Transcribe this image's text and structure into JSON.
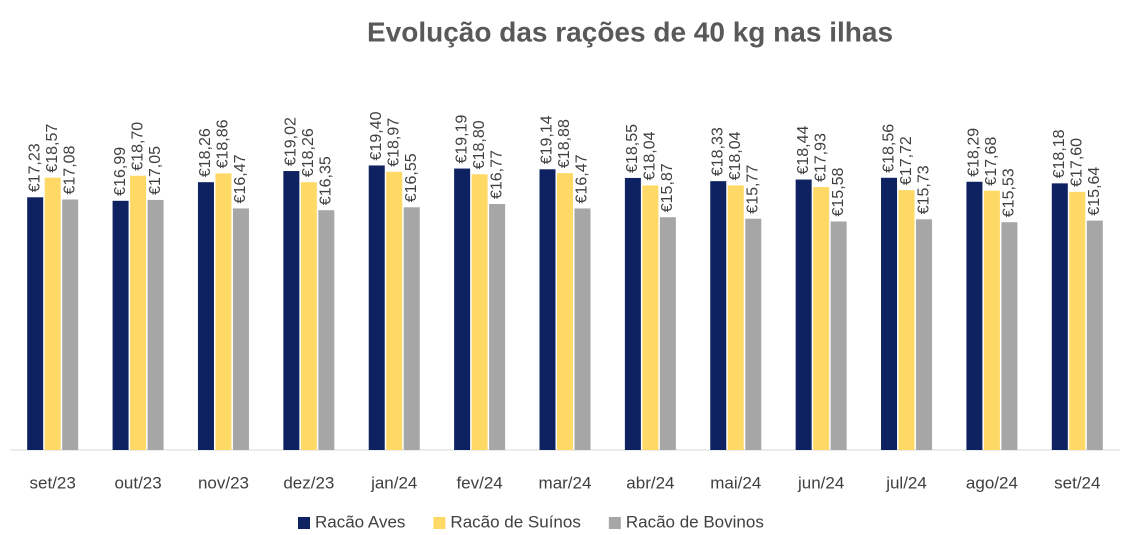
{
  "chart_data": {
    "type": "bar",
    "title": "Evolução das rações de 40 kg nas ilhas",
    "categories": [
      "set/23",
      "out/23",
      "nov/23",
      "dez/23",
      "jan/24",
      "fev/24",
      "mar/24",
      "abr/24",
      "mai/24",
      "jun/24",
      "jul/24",
      "ago/24",
      "set/24"
    ],
    "series": [
      {
        "name": "Racão Aves",
        "color": "#0e2161",
        "values": [
          17.23,
          16.99,
          18.26,
          19.02,
          19.4,
          19.19,
          19.14,
          18.55,
          18.33,
          18.44,
          18.56,
          18.29,
          18.18
        ],
        "value_labels": [
          "€17,23",
          "€16,99",
          "€18,26",
          "€19,02",
          "€19,40",
          "€19,19",
          "€19,14",
          "€18,55",
          "€18,33",
          "€18,44",
          "€18,56",
          "€18,29",
          "€18,18"
        ]
      },
      {
        "name": "Racão de Suínos",
        "color": "#ffd966",
        "values": [
          18.57,
          18.7,
          18.86,
          18.26,
          18.97,
          18.8,
          18.88,
          18.04,
          18.04,
          17.93,
          17.72,
          17.68,
          17.6
        ],
        "value_labels": [
          "€18,57",
          "€18,70",
          "€18,86",
          "€18,26",
          "€18,97",
          "€18,80",
          "€18,88",
          "€18,04",
          "€18,04",
          "€17,93",
          "€17,72",
          "€17,68",
          "€17,60"
        ]
      },
      {
        "name": "Racão de Bovinos",
        "color": "#a6a6a6",
        "values": [
          17.08,
          17.05,
          16.47,
          16.35,
          16.55,
          16.77,
          16.47,
          15.87,
          15.77,
          15.58,
          15.73,
          15.53,
          15.64
        ],
        "value_labels": [
          "€17,08",
          "€17,05",
          "€16,47",
          "€16,35",
          "€16,55",
          "€16,77",
          "€16,47",
          "€15,87",
          "€15,77",
          "€15,58",
          "€15,73",
          "€15,53",
          "€15,64"
        ]
      }
    ],
    "ylim": [
      0,
      30
    ],
    "legend": "bottom"
  }
}
